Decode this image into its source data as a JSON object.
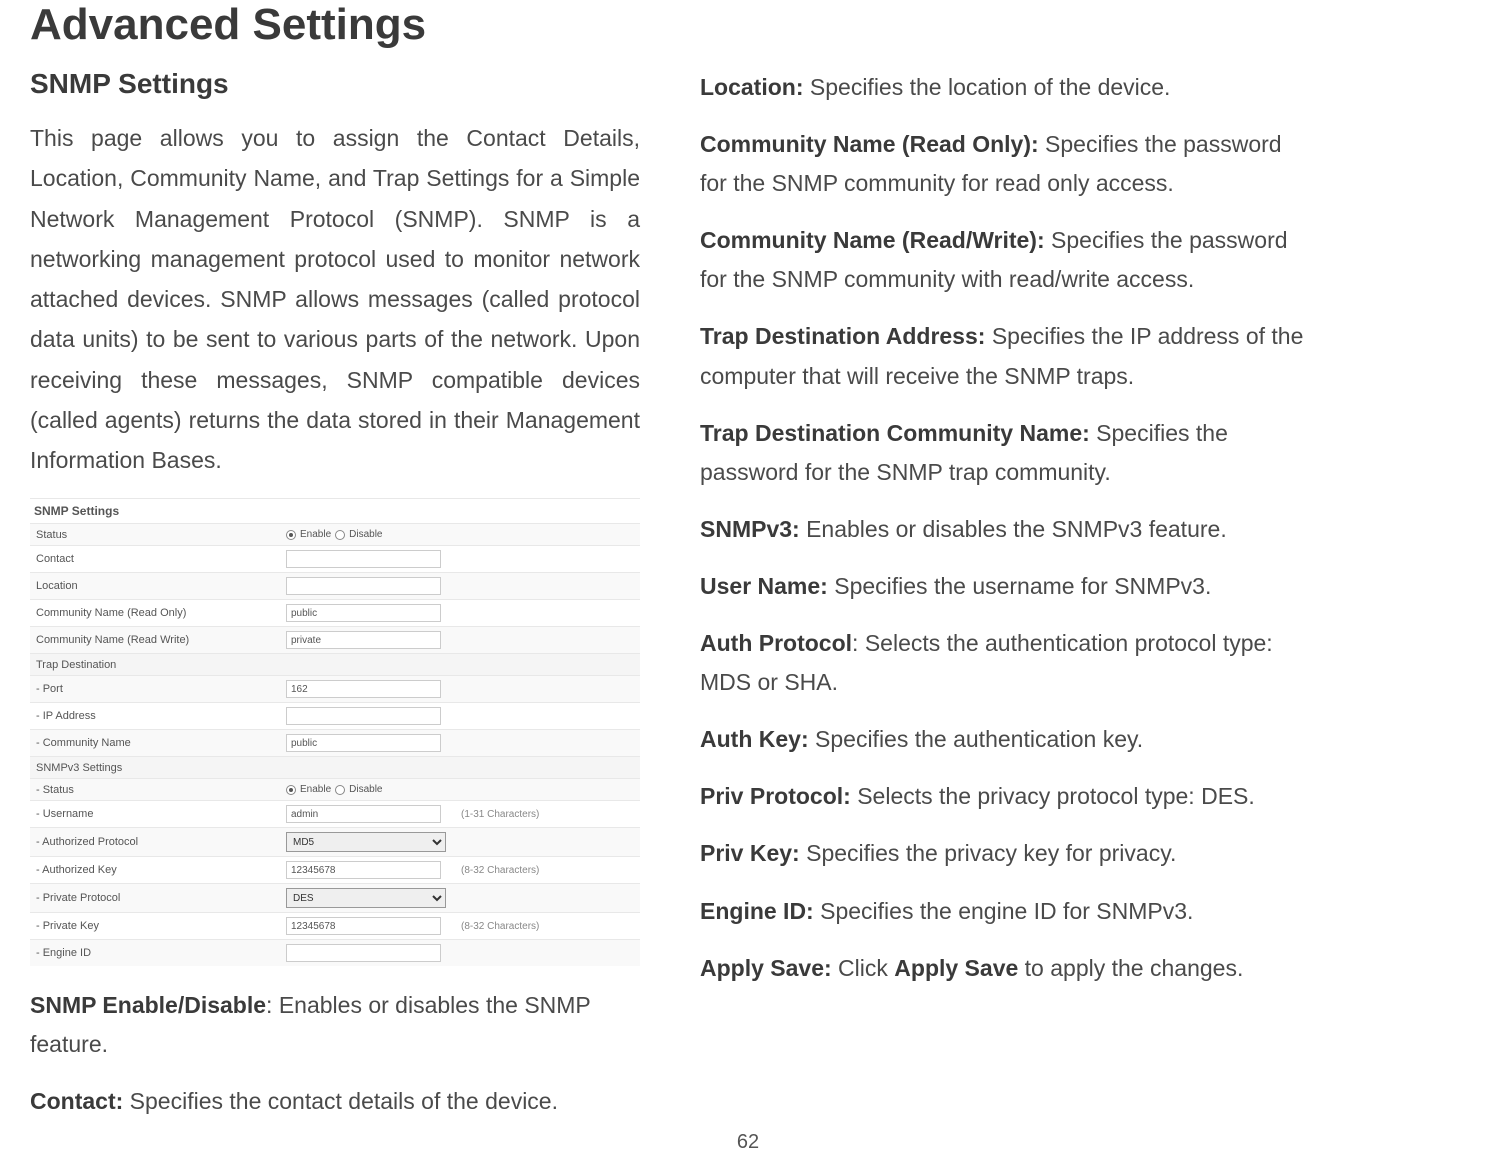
{
  "page": {
    "title": "Advanced Settings",
    "number": "62"
  },
  "left": {
    "heading": "SNMP Settings",
    "intro": "This page allows you to assign the Contact Details, Location, Community Name, and Trap Settings for a Simple Network Management Protocol (SNMP). SNMP is a networking management protocol used to monitor network attached devices. SNMP allows messages (called protocol data units) to be sent to various parts of the network. Upon receiving these messages, SNMP compatible devices (called agents) returns the data stored in their Management Information Bases."
  },
  "table": {
    "title": "SNMP Settings",
    "rows": {
      "status_label": "Status",
      "status_enable": "Enable",
      "status_disable": "Disable",
      "contact_label": "Contact",
      "contact_value": "",
      "location_label": "Location",
      "location_value": "",
      "comm_ro_label": "Community Name (Read Only)",
      "comm_ro_value": "public",
      "comm_rw_label": "Community Name (Read Write)",
      "comm_rw_value": "private",
      "trap_section": "Trap Destination",
      "trap_port_label": "- Port",
      "trap_port_value": "162",
      "trap_ip_label": "- IP Address",
      "trap_ip_value": "",
      "trap_comm_label": "- Community Name",
      "trap_comm_value": "public",
      "v3_section": "SNMPv3 Settings",
      "v3_status_label": "- Status",
      "v3_username_label": "- Username",
      "v3_username_value": "admin",
      "v3_username_hint": "(1-31 Characters)",
      "v3_authproto_label": "- Authorized Protocol",
      "v3_authproto_value": "MD5",
      "v3_authkey_label": "- Authorized Key",
      "v3_authkey_value": "12345678",
      "v3_authkey_hint": "(8-32 Characters)",
      "v3_privproto_label": "- Private Protocol",
      "v3_privproto_value": "DES",
      "v3_privkey_label": "- Private Key",
      "v3_privkey_value": "12345678",
      "v3_privkey_hint": "(8-32 Characters)",
      "v3_engine_label": "- Engine ID",
      "v3_engine_value": ""
    }
  },
  "defs": {
    "enable": {
      "t": "SNMP Enable/Disable",
      "d": ": Enables or disables the SNMP feature."
    },
    "contact": {
      "t": "Contact:",
      "d": " Specifies the contact details of the device."
    },
    "location": {
      "t": "Location:",
      "d": " Specifies the location of the device."
    },
    "comm_ro": {
      "t": "Community Name (Read Only):",
      "d": " Specifies the password for the SNMP community for read only access."
    },
    "comm_rw": {
      "t": "Community Name (Read/Write):",
      "d": " Specifies the password for the SNMP community with read/write access."
    },
    "trap_addr": {
      "t": "Trap Destination Address:",
      "d": " Specifies the IP address of the computer that will receive the SNMP traps."
    },
    "trap_comm": {
      "t": "Trap Destination Community Name:",
      "d": " Specifies the password for the SNMP trap community."
    },
    "snmpv3": {
      "t": "SNMPv3:",
      "d": " Enables or disables the SNMPv3 feature."
    },
    "username": {
      "t": "User Name:",
      "d": " Specifies the username for SNMPv3."
    },
    "authproto": {
      "t": "Auth Protocol",
      "d": ": Selects the authentication protocol type: MDS or SHA."
    },
    "authkey": {
      "t": "Auth Key:",
      "d": " Specifies the authentication key."
    },
    "privproto": {
      "t": "Priv Protocol:",
      "d": " Selects the privacy protocol type: DES."
    },
    "privkey": {
      "t": "Priv Key:",
      "d": " Specifies the privacy key for privacy."
    },
    "engine": {
      "t": "Engine ID:",
      "d": " Specifies the engine ID for SNMPv3."
    },
    "apply_a": {
      "t": "Apply Save:",
      "d": " Click "
    },
    "apply_b": {
      "t": "Apply Save",
      "d": " to apply the changes."
    }
  }
}
